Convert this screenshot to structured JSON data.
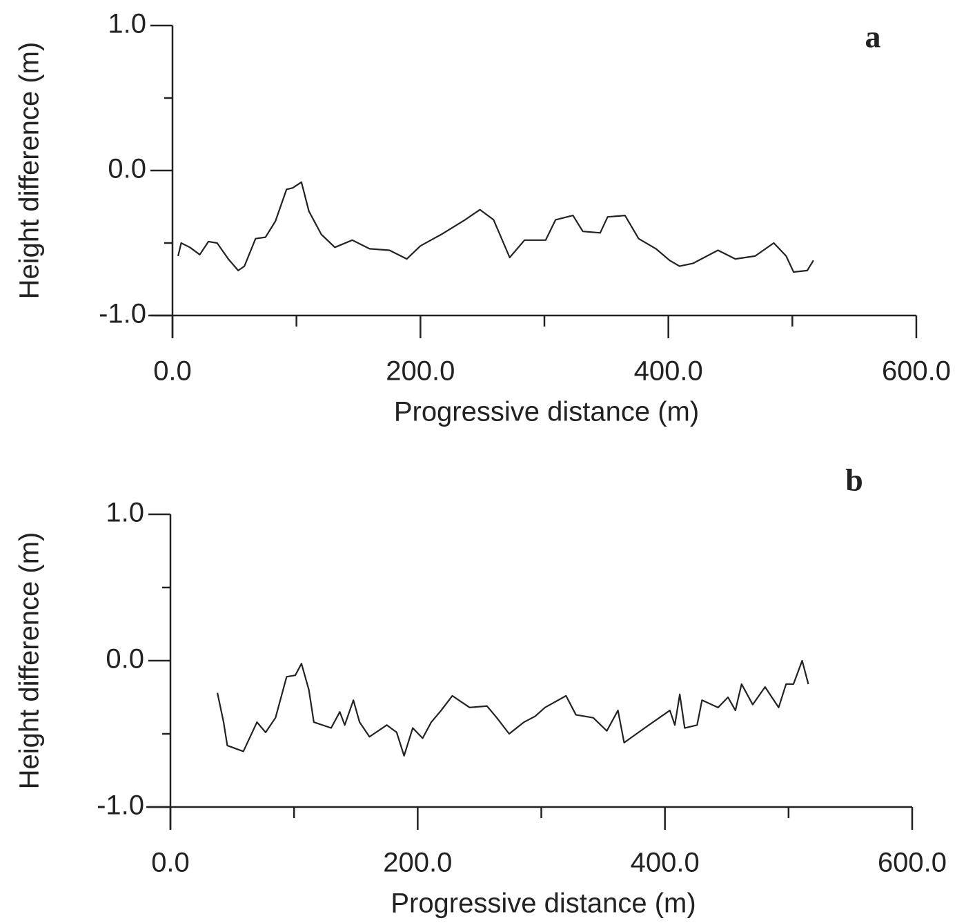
{
  "chart_data": [
    {
      "type": "line",
      "panel": "a",
      "xlabel": "Progressive distance (m)",
      "ylabel": "Height difference (m)",
      "xlim": [
        0,
        600
      ],
      "ylim": [
        -1,
        1
      ],
      "xticks": [
        {
          "value": 0,
          "label": "0.0"
        },
        {
          "value": 200,
          "label": "200.0"
        },
        {
          "value": 400,
          "label": "400.0"
        },
        {
          "value": 600,
          "label": "600.0"
        }
      ],
      "minor_xticks": [
        100,
        300,
        500
      ],
      "yticks": [
        {
          "value": -1,
          "label": "-1.0"
        },
        {
          "value": 0,
          "label": "0.0"
        },
        {
          "value": 1,
          "label": "1.0"
        }
      ],
      "minor_yticks": [
        -0.5,
        0.5
      ],
      "color": "#222222",
      "x": [
        4.5,
        7,
        14,
        22,
        29,
        36,
        45,
        53,
        58,
        67,
        75,
        83,
        92,
        97,
        104,
        110,
        120,
        131,
        145,
        159,
        175,
        189,
        200,
        217,
        236,
        248,
        259,
        272,
        284,
        301,
        309,
        323,
        331,
        345,
        351,
        365,
        376,
        390,
        401,
        409,
        420,
        440,
        454,
        470,
        485,
        495,
        501,
        512,
        517
      ],
      "values": [
        -0.59,
        -0.5,
        -0.53,
        -0.58,
        -0.49,
        -0.5,
        -0.61,
        -0.69,
        -0.66,
        -0.47,
        -0.46,
        -0.35,
        -0.13,
        -0.12,
        -0.08,
        -0.28,
        -0.44,
        -0.53,
        -0.48,
        -0.54,
        -0.55,
        -0.61,
        -0.52,
        -0.44,
        -0.34,
        -0.27,
        -0.34,
        -0.6,
        -0.48,
        -0.48,
        -0.34,
        -0.31,
        -0.42,
        -0.43,
        -0.32,
        -0.31,
        -0.47,
        -0.54,
        -0.62,
        -0.66,
        -0.64,
        -0.55,
        -0.61,
        -0.59,
        -0.5,
        -0.59,
        -0.7,
        -0.69,
        -0.62
      ]
    },
    {
      "type": "line",
      "panel": "b",
      "xlabel": "Progressive distance (m)",
      "ylabel": "Height difference (m)",
      "xlim": [
        0,
        600
      ],
      "ylim": [
        -1,
        1
      ],
      "xticks": [
        {
          "value": 0,
          "label": "0.0"
        },
        {
          "value": 200,
          "label": "200.0"
        },
        {
          "value": 400,
          "label": "400.0"
        },
        {
          "value": 600,
          "label": "600.0"
        }
      ],
      "minor_xticks": [
        100,
        300,
        500
      ],
      "yticks": [
        {
          "value": -1,
          "label": "-1.0"
        },
        {
          "value": 0,
          "label": "0.0"
        },
        {
          "value": 1,
          "label": "1.0"
        }
      ],
      "minor_yticks": [
        -0.5,
        0.5
      ],
      "color": "#222222",
      "x": [
        38,
        43,
        46,
        59,
        70,
        77,
        85,
        94,
        101,
        106,
        112,
        116,
        130,
        137,
        141,
        148,
        153,
        161,
        175,
        183,
        189,
        196,
        204,
        211,
        219,
        228,
        242,
        256,
        264,
        274,
        286,
        295,
        303,
        320,
        328,
        342,
        353,
        362,
        367,
        387,
        404,
        408,
        412,
        416,
        426,
        430,
        443,
        451,
        457,
        462,
        471,
        481,
        492,
        498,
        504,
        511,
        516
      ],
      "values": [
        -0.22,
        -0.42,
        -0.58,
        -0.62,
        -0.42,
        -0.49,
        -0.39,
        -0.11,
        -0.1,
        -0.02,
        -0.2,
        -0.42,
        -0.46,
        -0.35,
        -0.44,
        -0.27,
        -0.42,
        -0.52,
        -0.44,
        -0.49,
        -0.65,
        -0.46,
        -0.53,
        -0.42,
        -0.34,
        -0.24,
        -0.32,
        -0.31,
        -0.39,
        -0.5,
        -0.42,
        -0.38,
        -0.32,
        -0.24,
        -0.37,
        -0.39,
        -0.48,
        -0.34,
        -0.56,
        -0.44,
        -0.34,
        -0.44,
        -0.23,
        -0.46,
        -0.44,
        -0.27,
        -0.32,
        -0.25,
        -0.34,
        -0.16,
        -0.3,
        -0.18,
        -0.32,
        -0.16,
        -0.16,
        0,
        -0.16
      ]
    }
  ]
}
